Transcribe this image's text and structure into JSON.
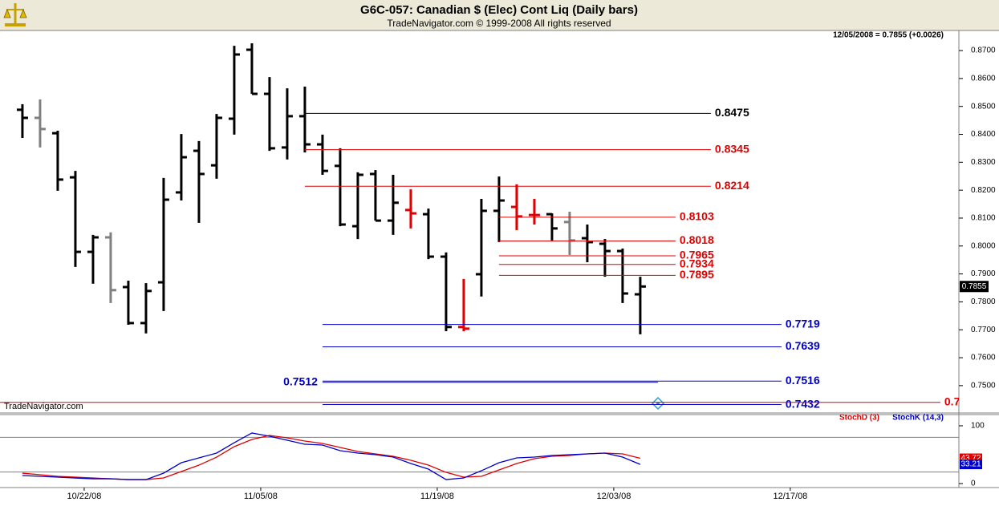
{
  "chart_data": [
    {
      "type": "ohlc",
      "title": "G6C-057:  Canadian $ (Elec) Cont Liq  (Daily bars)",
      "subtitle": "TradeNavigator.com © 1999-2008 All rights reserved",
      "status": "12/05/2008 = 0.7855 (+0.0026)",
      "watermark": "TradeNavigator.com",
      "open": [
        0.8488,
        0.8459,
        0.8404,
        0.8246,
        0.7979,
        0.8031,
        0.7853,
        0.7724,
        0.787,
        0.8192,
        0.8341,
        0.8289,
        0.8456,
        0.8703,
        0.8545,
        0.8353,
        0.8465,
        0.8364,
        0.8287,
        0.8071,
        0.8258,
        0.8091,
        0.8129,
        0.8114,
        0.7962,
        0.771,
        0.7899,
        0.8126,
        0.814,
        0.8111,
        0.8114,
        0.8086,
        0.8028,
        0.8008,
        0.7982,
        0.7827
      ],
      "high": [
        0.8508,
        0.8525,
        0.8413,
        0.8269,
        0.804,
        0.8049,
        0.7876,
        0.7867,
        0.8244,
        0.8401,
        0.8376,
        0.8473,
        0.8717,
        0.8726,
        0.8605,
        0.8565,
        0.8571,
        0.8399,
        0.835,
        0.8264,
        0.8272,
        0.8255,
        0.8203,
        0.8134,
        0.7977,
        0.7882,
        0.8169,
        0.8249,
        0.8221,
        0.8169,
        0.8117,
        0.8123,
        0.8077,
        0.8025,
        0.7991,
        0.789
      ],
      "low": [
        0.8387,
        0.8353,
        0.8198,
        0.7925,
        0.7865,
        0.7796,
        0.7718,
        0.7687,
        0.7767,
        0.8163,
        0.8083,
        0.8241,
        0.8399,
        0.8545,
        0.8341,
        0.831,
        0.8335,
        0.8255,
        0.8071,
        0.8025,
        0.8091,
        0.804,
        0.8063,
        0.7953,
        0.7695,
        0.7695,
        0.7819,
        0.8014,
        0.8057,
        0.8077,
        0.802,
        0.7968,
        0.7942,
        0.789,
        0.7796,
        0.7684
      ],
      "close": [
        0.8459,
        0.8419,
        0.8238,
        0.7979,
        0.8031,
        0.7842,
        0.7724,
        0.7839,
        0.8166,
        0.8318,
        0.8258,
        0.8459,
        0.8686,
        0.8545,
        0.835,
        0.8465,
        0.8364,
        0.8269,
        0.8077,
        0.8255,
        0.8091,
        0.8155,
        0.8117,
        0.7962,
        0.771,
        0.7704,
        0.8126,
        0.8163,
        0.8106,
        0.8111,
        0.8063,
        0.802,
        0.8014,
        0.7982,
        0.783,
        0.7855
      ],
      "colors": [
        "#000000",
        "#808080",
        "#000000",
        "#000000",
        "#000000",
        "#808080",
        "#000000",
        "#000000",
        "#000000",
        "#000000",
        "#000000",
        "#000000",
        "#000000",
        "#000000",
        "#000000",
        "#000000",
        "#000000",
        "#000000",
        "#000000",
        "#000000",
        "#000000",
        "#000000",
        "#e00000",
        "#000000",
        "#000000",
        "#e00000",
        "#000000",
        "#000000",
        "#e00000",
        "#e00000",
        "#000000",
        "#808080",
        "#000000",
        "#000000",
        "#000000",
        "#000000"
      ],
      "xlim": [
        -1.27,
        53.05
      ],
      "ylim": [
        0.7402,
        0.8772
      ],
      "yticks": [
        {
          "value": 0.75,
          "label": "0.7500"
        },
        {
          "value": 0.76,
          "label": "0.7600"
        },
        {
          "value": 0.77,
          "label": "0.7700"
        },
        {
          "value": 0.78,
          "label": "0.7800"
        },
        {
          "value": 0.79,
          "label": "0.7900"
        },
        {
          "value": 0.8,
          "label": "0.8000"
        },
        {
          "value": 0.81,
          "label": "0.8100"
        },
        {
          "value": 0.82,
          "label": "0.8200"
        },
        {
          "value": 0.83,
          "label": "0.8300"
        },
        {
          "value": 0.84,
          "label": "0.8400"
        },
        {
          "value": 0.85,
          "label": "0.8500"
        },
        {
          "value": 0.86,
          "label": "0.8600"
        },
        {
          "value": 0.87,
          "label": "0.8700"
        }
      ],
      "xticks": [
        {
          "value": 3.5,
          "label": "10/22/08"
        },
        {
          "value": 13.5,
          "label": "11/05/08"
        },
        {
          "value": 23.5,
          "label": "11/19/08"
        },
        {
          "value": 33.5,
          "label": "12/03/08"
        },
        {
          "value": 43.5,
          "label": "12/17/08"
        }
      ],
      "levels": [
        {
          "value": 0.8475,
          "color": "#000000",
          "from": 16,
          "to": 39,
          "side": "right"
        },
        {
          "value": 0.8345,
          "color": "#e00000",
          "from": 16,
          "to": 39,
          "side": "right"
        },
        {
          "value": 0.8214,
          "color": "#e00000",
          "from": 16,
          "to": 39,
          "side": "right"
        },
        {
          "value": 0.8103,
          "color": "#e00000",
          "from": 27,
          "to": 37,
          "side": "right"
        },
        {
          "value": 0.8018,
          "color": "#e00000",
          "from": 27,
          "to": 37,
          "side": "right"
        },
        {
          "value": 0.7965,
          "color": "#e00000",
          "from": 27,
          "to": 37,
          "side": "right"
        },
        {
          "value": 0.7934,
          "color": "#e00000",
          "from": 27,
          "to": 37,
          "side": "right"
        },
        {
          "value": 0.7895,
          "color": "#e00000",
          "from": 27,
          "to": 37,
          "side": "right"
        },
        {
          "value": 0.7719,
          "color": "#0000cc",
          "from": 17,
          "to": 43,
          "side": "right"
        },
        {
          "value": 0.7639,
          "color": "#0000cc",
          "from": 17,
          "to": 43,
          "side": "right"
        },
        {
          "value": 0.7516,
          "color": "#0000cc",
          "from": 17,
          "to": 43,
          "side": "right"
        },
        {
          "value": 0.7512,
          "color": "#0000cc",
          "from": 17,
          "to": 36,
          "side": "left"
        },
        {
          "value": 0.7432,
          "color": "#0000cc",
          "from": 17,
          "to": 43,
          "side": "right"
        },
        {
          "value": 0.744,
          "label": "0.7",
          "color": "#e00000",
          "from": -1.27,
          "to": 52,
          "side": "right"
        }
      ]
    },
    {
      "type": "line",
      "xlim": [
        -1.27,
        53.05
      ],
      "ylim": [
        -6.9,
        119.4
      ],
      "yticks": [
        0,
        100
      ],
      "levels": [
        20,
        80
      ],
      "series": [
        {
          "name": "StochD (3)",
          "color": "#e00000",
          "values": [
            18,
            15.3,
            12.5,
            11.1,
            9.7,
            8.3,
            6.9,
            6.9,
            9.7,
            20.8,
            31.9,
            45.8,
            63.9,
            76.4,
            83.3,
            79.2,
            73.6,
            69.4,
            62.5,
            55.6,
            51.4,
            47.2,
            40.3,
            31.9,
            19.4,
            11.1,
            12.5,
            23.6,
            34.7,
            43.1,
            47.2,
            48.6,
            51.4,
            52.8,
            51.4,
            43.72
          ]
        },
        {
          "name": "StochK (14,3)",
          "color": "#0000cc",
          "values": [
            13.9,
            12.5,
            11.1,
            9.7,
            8.3,
            8.3,
            6.9,
            6.9,
            18.1,
            36.1,
            44.4,
            52.8,
            70.8,
            87.5,
            81.9,
            75,
            68.1,
            66.7,
            56.9,
            52.8,
            50,
            45.8,
            34.7,
            25,
            6.9,
            9.7,
            22.2,
            36.1,
            44.4,
            45.8,
            48.6,
            50,
            51.4,
            52.8,
            45.8,
            33.21
          ]
        }
      ]
    }
  ]
}
